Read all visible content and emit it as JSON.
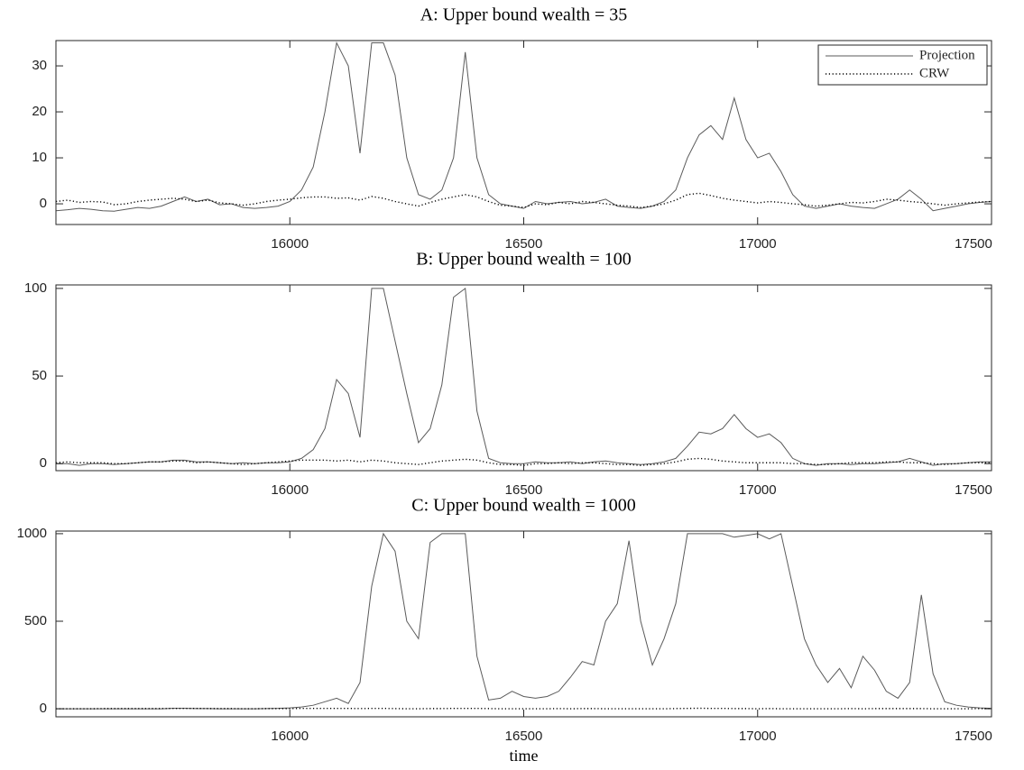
{
  "chart_data": [
    {
      "type": "line",
      "title": "A: Upper bound wealth = 35",
      "x": [
        15500,
        15525,
        15550,
        15575,
        15600,
        15625,
        15650,
        15675,
        15700,
        15725,
        15750,
        15775,
        15800,
        15825,
        15850,
        15875,
        15900,
        15925,
        15950,
        15975,
        16000,
        16025,
        16050,
        16075,
        16100,
        16125,
        16150,
        16175,
        16200,
        16225,
        16250,
        16275,
        16300,
        16325,
        16350,
        16375,
        16400,
        16425,
        16450,
        16475,
        16500,
        16525,
        16550,
        16575,
        16600,
        16625,
        16650,
        16675,
        16700,
        16725,
        16750,
        16775,
        16800,
        16825,
        16850,
        16875,
        16900,
        16925,
        16950,
        16975,
        17000,
        17025,
        17050,
        17075,
        17100,
        17125,
        17150,
        17175,
        17200,
        17225,
        17250,
        17275,
        17300,
        17325,
        17350,
        17375,
        17400,
        17425,
        17450,
        17475,
        17500
      ],
      "series": [
        {
          "name": "Projection",
          "color": "#5a5a5a",
          "style": "solid",
          "values": [
            -1.5,
            -1.3,
            -1,
            -1.2,
            -1.5,
            -1.6,
            -1.2,
            -0.8,
            -1,
            -0.5,
            0.5,
            1.5,
            0.5,
            1,
            -0.2,
            0,
            -0.8,
            -1,
            -0.8,
            -0.5,
            0.5,
            3,
            8,
            20,
            35,
            30,
            11,
            35,
            35,
            28,
            10,
            2,
            1,
            3,
            10,
            33,
            10,
            2,
            0,
            -0.5,
            -1,
            0.5,
            0,
            0.3,
            0.5,
            0,
            0.3,
            1,
            -0.5,
            -0.8,
            -1,
            -0.5,
            0.5,
            3,
            10,
            15,
            17,
            14,
            23,
            14,
            10,
            11,
            7,
            2,
            -0.5,
            -1,
            -0.5,
            0,
            -0.5,
            -0.8,
            -1,
            0,
            1,
            3,
            1,
            -1.5,
            -1,
            -0.5,
            0,
            0.3,
            0.5
          ]
        },
        {
          "name": "CRW",
          "color": "#000000",
          "style": "dotted",
          "values": [
            0.5,
            0.8,
            0.3,
            0.5,
            0.4,
            -0.2,
            0,
            0.5,
            0.8,
            1,
            1.2,
            1,
            0.5,
            0.8,
            0.2,
            0,
            -0.3,
            0,
            0.5,
            0.8,
            1,
            1.3,
            1.5,
            1.5,
            1.2,
            1.3,
            0.8,
            1.6,
            1.2,
            0.5,
            0,
            -0.5,
            0.3,
            1,
            1.5,
            2,
            1.5,
            0.5,
            -0.3,
            -0.5,
            -0.8,
            0,
            -0.2,
            0.3,
            0,
            0.5,
            0.3,
            0,
            -0.3,
            -0.5,
            -0.8,
            -0.5,
            0,
            0.8,
            2,
            2.3,
            1.8,
            1.2,
            0.8,
            0.5,
            0.2,
            0.5,
            0.3,
            0,
            -0.2,
            -0.5,
            -0.3,
            0,
            0.3,
            0.2,
            0.5,
            1,
            0.8,
            0.5,
            0.3,
            0,
            -0.3,
            0,
            0.2,
            0.4,
            0.5
          ]
        }
      ],
      "xlim": [
        15500,
        17500
      ],
      "xticks": [
        16000,
        16500,
        17000,
        17500
      ],
      "ylim": [
        -4.5,
        35.5
      ],
      "yticks": [
        0,
        10,
        20,
        30
      ],
      "legend": "upper right",
      "grid": false
    },
    {
      "type": "line",
      "title": "B: Upper bound wealth = 100",
      "x": [
        15500,
        15525,
        15550,
        15575,
        15600,
        15625,
        15650,
        15675,
        15700,
        15725,
        15750,
        15775,
        15800,
        15825,
        15850,
        15875,
        15900,
        15925,
        15950,
        15975,
        16000,
        16025,
        16050,
        16075,
        16100,
        16125,
        16150,
        16175,
        16200,
        16225,
        16250,
        16275,
        16300,
        16325,
        16350,
        16375,
        16400,
        16425,
        16450,
        16475,
        16500,
        16525,
        16550,
        16575,
        16600,
        16625,
        16650,
        16675,
        16700,
        16725,
        16750,
        16775,
        16800,
        16825,
        16850,
        16875,
        16900,
        16925,
        16950,
        16975,
        17000,
        17025,
        17050,
        17075,
        17100,
        17125,
        17150,
        17175,
        17200,
        17225,
        17250,
        17275,
        17300,
        17325,
        17350,
        17375,
        17400,
        17425,
        17450,
        17475,
        17500
      ],
      "series": [
        {
          "color": "#5a5a5a",
          "style": "solid",
          "values": [
            0,
            0,
            -1,
            0,
            0,
            -0.5,
            0,
            0.5,
            1,
            1,
            2,
            2,
            1,
            1,
            0.5,
            0,
            0.5,
            0,
            0.5,
            0.5,
            1,
            3,
            8,
            20,
            48,
            40,
            15,
            100,
            100,
            70,
            40,
            12,
            20,
            45,
            95,
            100,
            30,
            3,
            0.5,
            0,
            0,
            1,
            0.5,
            0.5,
            1,
            0,
            1,
            1.5,
            0.5,
            0,
            -0.5,
            0,
            1,
            3,
            10,
            18,
            17,
            20,
            28,
            20,
            15,
            17,
            12,
            3,
            0,
            -1,
            0,
            0,
            -0.5,
            0,
            0,
            0.5,
            1,
            3,
            1,
            -1,
            0,
            0,
            0.5,
            1,
            1
          ]
        },
        {
          "color": "#000000",
          "style": "dotted",
          "values": [
            0.5,
            1,
            0.5,
            0.5,
            0.5,
            0,
            0,
            0.5,
            1,
            1,
            1.5,
            1.5,
            0.5,
            1,
            0.5,
            0,
            -0.5,
            0,
            0.5,
            1,
            1.5,
            2,
            2,
            2,
            1.5,
            2,
            1,
            2,
            1.5,
            0.5,
            0,
            -0.5,
            0.5,
            1.5,
            2,
            2.5,
            2,
            0.5,
            -0.5,
            -0.5,
            -1,
            0,
            0,
            0.5,
            0,
            0.5,
            0.5,
            0,
            -0.5,
            -0.5,
            -1,
            -0.5,
            0,
            1,
            2.5,
            3,
            2.5,
            1.5,
            1,
            0.5,
            0.5,
            0.5,
            0.5,
            0,
            0,
            -0.5,
            -0.5,
            0,
            0.5,
            0.5,
            0.5,
            1,
            1,
            0.5,
            0.5,
            0,
            -0.5,
            0,
            0.5,
            0.5,
            0.5
          ]
        }
      ],
      "xlim": [
        15500,
        17500
      ],
      "xticks": [
        16000,
        16500,
        17000,
        17500
      ],
      "ylim": [
        -4,
        102
      ],
      "yticks": [
        0,
        50,
        100
      ],
      "grid": false
    },
    {
      "type": "line",
      "title": "C: Upper bound wealth = 1000",
      "x_label": "time",
      "x": [
        15500,
        15525,
        15550,
        15575,
        15600,
        15625,
        15650,
        15675,
        15700,
        15725,
        15750,
        15775,
        15800,
        15825,
        15850,
        15875,
        15900,
        15925,
        15950,
        15975,
        16000,
        16025,
        16050,
        16075,
        16100,
        16125,
        16150,
        16175,
        16200,
        16225,
        16250,
        16275,
        16300,
        16325,
        16350,
        16375,
        16400,
        16425,
        16450,
        16475,
        16500,
        16525,
        16550,
        16575,
        16600,
        16625,
        16650,
        16675,
        16700,
        16725,
        16750,
        16775,
        16800,
        16825,
        16850,
        16875,
        16900,
        16925,
        16950,
        16975,
        17000,
        17025,
        17050,
        17075,
        17100,
        17125,
        17150,
        17175,
        17200,
        17225,
        17250,
        17275,
        17300,
        17325,
        17350,
        17375,
        17400,
        17425,
        17450,
        17475,
        17500
      ],
      "series": [
        {
          "color": "#5a5a5a",
          "style": "solid",
          "values": [
            0,
            0,
            0,
            0,
            0,
            0,
            0,
            0,
            0,
            0,
            2,
            2,
            1,
            1,
            0,
            0,
            0,
            0,
            1,
            2,
            5,
            10,
            20,
            40,
            60,
            30,
            150,
            700,
            1000,
            900,
            500,
            400,
            950,
            1000,
            1000,
            1000,
            300,
            50,
            60,
            100,
            70,
            60,
            70,
            100,
            180,
            270,
            250,
            500,
            600,
            960,
            500,
            250,
            400,
            600,
            1000,
            1000,
            1000,
            1000,
            980,
            990,
            1000,
            970,
            1000,
            700,
            400,
            250,
            150,
            230,
            120,
            300,
            220,
            100,
            60,
            150,
            650,
            200,
            40,
            20,
            10,
            5,
            2
          ]
        },
        {
          "color": "#000000",
          "style": "dotted",
          "values": [
            0,
            0,
            0,
            0,
            1,
            1,
            1,
            1,
            1,
            1,
            2,
            2,
            2,
            1,
            1,
            1,
            0,
            0,
            1,
            1,
            1,
            2,
            2,
            2,
            2,
            2,
            1,
            2,
            2,
            1,
            0,
            0,
            1,
            1,
            2,
            2,
            2,
            1,
            0,
            0,
            0,
            0,
            0,
            1,
            0,
            1,
            1,
            0,
            0,
            0,
            0,
            0,
            0,
            1,
            2,
            3,
            2,
            2,
            1,
            1,
            0,
            1,
            0,
            0,
            0,
            0,
            0,
            0,
            1,
            0,
            1,
            1,
            1,
            1,
            1,
            0,
            0,
            0,
            0,
            1,
            1
          ]
        }
      ],
      "xlim": [
        15500,
        17500
      ],
      "xticks": [
        16000,
        16500,
        17000,
        17500
      ],
      "ylim": [
        -46,
        1015
      ],
      "yticks": [
        0,
        500,
        1000
      ],
      "grid": false
    }
  ]
}
